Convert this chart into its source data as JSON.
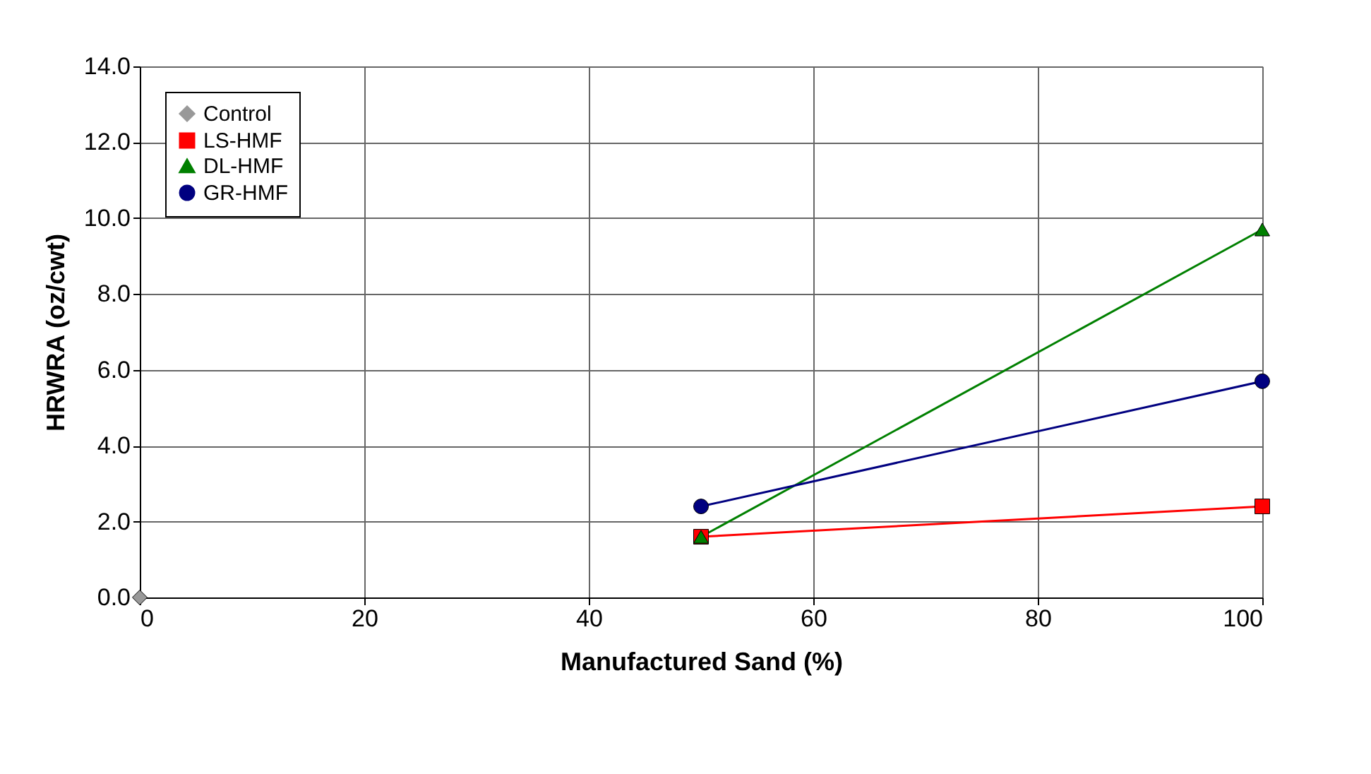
{
  "chart_data": {
    "type": "line",
    "xlabel": "Manufactured Sand (%)",
    "ylabel": "HRWRA (oz/cwt)",
    "xlim": [
      0,
      100
    ],
    "xticks": [
      0,
      20,
      40,
      60,
      80,
      100
    ],
    "ylim": [
      0,
      14
    ],
    "yticks": [
      {
        "value": 0,
        "label": "0.0"
      },
      {
        "value": 2,
        "label": "2.0"
      },
      {
        "value": 4,
        "label": "4.0"
      },
      {
        "value": 6,
        "label": "6.0"
      },
      {
        "value": 8,
        "label": "8.0"
      },
      {
        "value": 10,
        "label": "10.0"
      },
      {
        "value": 12,
        "label": "12.0"
      },
      {
        "value": 14,
        "label": "14.0"
      }
    ],
    "grid": true,
    "legend": "top left",
    "line_style": "solid",
    "series": [
      {
        "name": "Control",
        "color": "#999999",
        "marker": "diamond",
        "x": [
          0
        ],
        "values": [
          0
        ]
      },
      {
        "name": "LS-HMF",
        "color": "#ff0000",
        "marker": "square",
        "x": [
          50,
          100
        ],
        "values": [
          1.6,
          2.4
        ]
      },
      {
        "name": "DL-HMF",
        "color": "#008000",
        "marker": "triangle",
        "x": [
          50,
          100
        ],
        "values": [
          1.6,
          9.7
        ]
      },
      {
        "name": "GR-HMF",
        "color": "#000080",
        "marker": "circle",
        "x": [
          50,
          100
        ],
        "values": [
          2.4,
          5.7
        ]
      }
    ]
  }
}
